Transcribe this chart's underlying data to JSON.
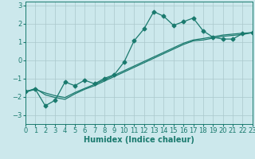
{
  "xlabel": "Humidex (Indice chaleur)",
  "ylabel": "",
  "x_values": [
    0,
    1,
    2,
    3,
    4,
    5,
    6,
    7,
    8,
    9,
    10,
    11,
    12,
    13,
    14,
    15,
    16,
    17,
    18,
    19,
    20,
    21,
    22,
    23
  ],
  "main_line": [
    -1.7,
    -1.6,
    -2.5,
    -2.2,
    -1.2,
    -1.4,
    -1.1,
    -1.3,
    -1.0,
    -0.8,
    -0.1,
    1.05,
    1.7,
    2.65,
    2.4,
    1.9,
    2.1,
    2.3,
    1.6,
    1.25,
    1.15,
    1.15,
    1.45,
    1.5
  ],
  "line1": [
    -1.75,
    -1.55,
    -1.9,
    -2.05,
    -2.15,
    -1.85,
    -1.6,
    -1.4,
    -1.15,
    -0.9,
    -0.65,
    -0.4,
    -0.15,
    0.1,
    0.35,
    0.6,
    0.85,
    1.05,
    1.1,
    1.2,
    1.3,
    1.35,
    1.4,
    1.5
  ],
  "line2": [
    -1.75,
    -1.6,
    -1.8,
    -1.95,
    -2.05,
    -1.78,
    -1.55,
    -1.33,
    -1.08,
    -0.83,
    -0.58,
    -0.33,
    -0.08,
    0.17,
    0.42,
    0.67,
    0.92,
    1.1,
    1.18,
    1.27,
    1.37,
    1.42,
    1.47,
    1.5
  ],
  "ylim": [
    -3.5,
    3.2
  ],
  "yticks": [
    -3,
    -2,
    -1,
    0,
    1,
    2,
    3
  ],
  "xlim": [
    0,
    23
  ],
  "bg_color": "#cce8ec",
  "grid_color": "#aac8cc",
  "line_color": "#1a7a6e",
  "marker": "D",
  "markersize": 2.5,
  "linewidth": 0.9,
  "label_fontsize": 7.0,
  "tick_fontsize": 6.0
}
